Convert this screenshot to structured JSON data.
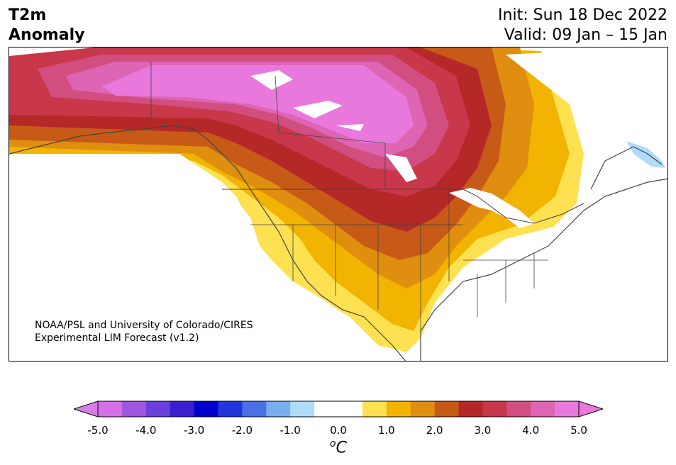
{
  "header": {
    "title_line1": "T2m",
    "title_line2": "Anomaly",
    "init": "Init: Sun 18 Dec 2022",
    "valid": "Valid: 09 Jan – 15 Jan"
  },
  "credit": {
    "line1": "NOAA/PSL and University of Colorado/CIRES",
    "line2": "Experimental LIM Forecast (v1.2)"
  },
  "colorbar": {
    "unit_base": "C",
    "unit_sup": "o",
    "tick_labels": [
      "-5.0",
      "-4.0",
      "-3.0",
      "-2.0",
      "-1.0",
      "0.0",
      "1.0",
      "2.0",
      "3.0",
      "4.0",
      "5.0"
    ],
    "colors": [
      "#d66ee8",
      "#a055e0",
      "#6b3fdc",
      "#3a1fd0",
      "#0000cc",
      "#2236dc",
      "#4a70e6",
      "#78aef0",
      "#aedcfa",
      "#ffffff",
      "#ffffff",
      "#fde150",
      "#f2b400",
      "#e08e10",
      "#c85a18",
      "#b52828",
      "#c8374a",
      "#d24e80",
      "#de64b4",
      "#e878dc"
    ],
    "extend_low_color": "#d67ee8",
    "extend_high_color": "#e878dc"
  },
  "map": {
    "anomaly_palette": {
      "plus_1_0": "#fde150",
      "plus_1_5": "#f2b400",
      "plus_2_0": "#e08e10",
      "plus_2_5": "#c85a18",
      "plus_3_0": "#b52828",
      "plus_3_5": "#c8374a",
      "plus_4_0": "#d24e80",
      "plus_4_5": "#de64b4",
      "plus_5_0": "#e878dc",
      "minus_1_0": "#aedcfa"
    }
  }
}
